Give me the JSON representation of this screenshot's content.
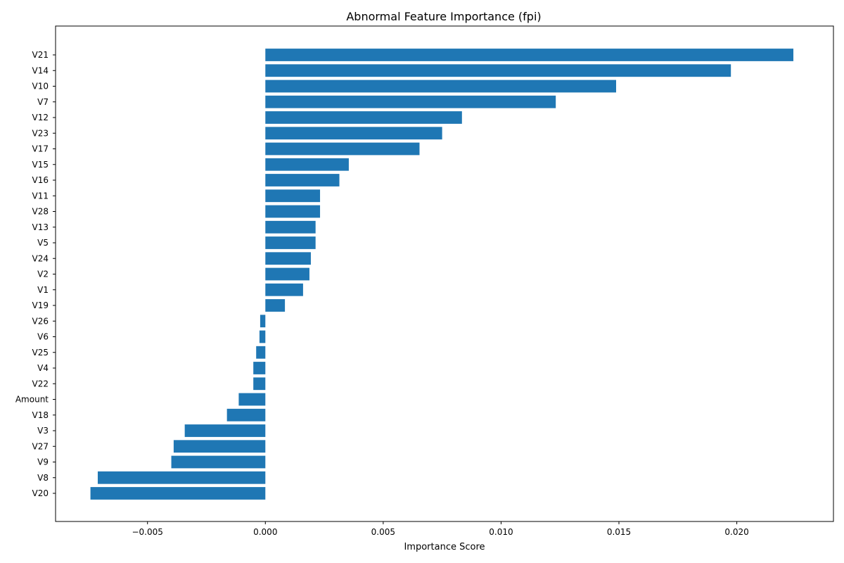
{
  "chart_data": {
    "type": "bar",
    "orientation": "horizontal",
    "title": "Abnormal Feature Importance (fpi)",
    "xlabel": "Importance Score",
    "ylabel": "",
    "xlim": [
      -0.0089,
      0.0241
    ],
    "xticks": [
      -0.005,
      0.0,
      0.005,
      0.01,
      0.015,
      0.02
    ],
    "xtick_labels": [
      "−0.005",
      "0.000",
      "0.005",
      "0.010",
      "0.015",
      "0.020"
    ],
    "bar_color": "#1f77b4",
    "grid": false,
    "categories": [
      "V21",
      "V14",
      "V10",
      "V7",
      "V12",
      "V23",
      "V17",
      "V15",
      "V16",
      "V11",
      "V28",
      "V13",
      "V5",
      "V24",
      "V2",
      "V1",
      "V19",
      "V26",
      "V6",
      "V25",
      "V4",
      "V22",
      "Amount",
      "V18",
      "V3",
      "V27",
      "V9",
      "V8",
      "V20"
    ],
    "values": [
      0.0224,
      0.01975,
      0.01488,
      0.01232,
      0.00834,
      0.0075,
      0.00654,
      0.00354,
      0.00314,
      0.00232,
      0.00232,
      0.00213,
      0.00213,
      0.00193,
      0.00187,
      0.0016,
      0.00083,
      -0.00022,
      -0.00025,
      -0.00039,
      -0.00051,
      -0.00051,
      -0.00113,
      -0.00163,
      -0.00342,
      -0.00389,
      -0.00399,
      -0.00711,
      -0.00742
    ]
  }
}
